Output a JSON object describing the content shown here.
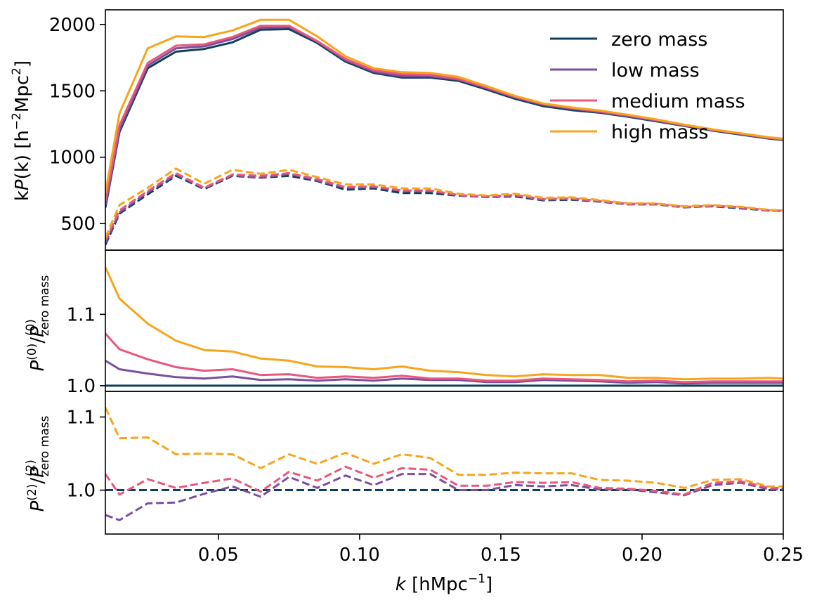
{
  "chart_data": {
    "type": "line",
    "x": [
      0.01,
      0.015,
      0.025,
      0.035,
      0.045,
      0.055,
      0.065,
      0.075,
      0.085,
      0.095,
      0.105,
      0.115,
      0.125,
      0.135,
      0.145,
      0.155,
      0.165,
      0.175,
      0.185,
      0.195,
      0.205,
      0.215,
      0.225,
      0.235,
      0.245,
      0.25
    ],
    "xlabel_symbol": "k",
    "xlabel_units": "[hMpc",
    "xlabel_exp": "−1",
    "xlim": [
      0.01,
      0.25
    ],
    "xticks": [
      0.05,
      0.1,
      0.15,
      0.2,
      0.25
    ],
    "xtick_labels": [
      "0.05",
      "0.10",
      "0.15",
      "0.20",
      "0.25"
    ],
    "colors": {
      "zero_mass": "#0e3f5c",
      "low_mass": "#7b4f9e",
      "medium_mass": "#e8577c",
      "high_mass": "#f7a51b"
    },
    "legend": {
      "placement": "top-right",
      "entries": [
        {
          "key": "zero_mass",
          "label": "zero mass"
        },
        {
          "key": "low_mass",
          "label": "low mass"
        },
        {
          "key": "medium_mass",
          "label": "medium mass"
        },
        {
          "key": "high_mass",
          "label": "high mass"
        }
      ]
    },
    "panels": [
      {
        "id": "top",
        "ylabel_prefix": "k",
        "ylabel_func": "P",
        "ylabel_arg": "(k) [h",
        "ylabel_exp1": "−2",
        "ylabel_mid": "Mpc",
        "ylabel_exp2": "2",
        "ylabel_end": "]",
        "ylim": [
          300,
          2110
        ],
        "yticks": [
          500,
          1000,
          1500,
          2000
        ],
        "ytick_labels": [
          "500",
          "1000",
          "1500",
          "2000"
        ],
        "series": [
          {
            "key": "zero_mass",
            "style": "solid",
            "values": [
              620,
              1190,
              1670,
              1795,
              1815,
              1865,
              1960,
              1965,
              1860,
              1720,
              1635,
              1600,
              1600,
              1575,
              1510,
              1440,
              1385,
              1355,
              1335,
              1305,
              1270,
              1235,
              1200,
              1170,
              1140,
              1130
            ]
          },
          {
            "key": "low_mass",
            "style": "solid",
            "values": [
              640,
              1210,
              1690,
              1820,
              1835,
              1890,
              1975,
              1980,
              1870,
              1730,
              1645,
              1610,
              1610,
              1585,
              1520,
              1450,
              1395,
              1365,
              1340,
              1310,
              1275,
              1238,
              1204,
              1174,
              1143,
              1133
            ]
          },
          {
            "key": "medium_mass",
            "style": "solid",
            "values": [
              670,
              1240,
              1710,
              1840,
              1850,
              1905,
              1990,
              1990,
              1875,
              1740,
              1655,
              1625,
              1620,
              1590,
              1525,
              1455,
              1400,
              1370,
              1345,
              1315,
              1280,
              1242,
              1207,
              1177,
              1146,
              1136
            ]
          },
          {
            "key": "high_mass",
            "style": "solid",
            "values": [
              730,
              1330,
              1820,
              1910,
              1905,
              1955,
              2035,
              2035,
              1910,
              1760,
              1670,
              1640,
              1635,
              1605,
              1535,
              1462,
              1405,
              1375,
              1352,
              1320,
              1285,
              1245,
              1210,
              1180,
              1150,
              1140
            ]
          },
          {
            "key": "zero_mass",
            "style": "dashed",
            "values": [
              340,
              575,
              720,
              860,
              760,
              860,
              845,
              860,
              820,
              755,
              765,
              730,
              730,
              710,
              700,
              705,
              675,
              680,
              665,
              645,
              645,
              625,
              630,
              615,
              598,
              595
            ]
          },
          {
            "key": "low_mass",
            "style": "dashed",
            "values": [
              355,
              585,
              735,
              870,
              765,
              865,
              845,
              875,
              825,
              770,
              775,
              745,
              745,
              712,
              700,
              712,
              680,
              685,
              668,
              646,
              645,
              622,
              633,
              620,
              598,
              595
            ]
          },
          {
            "key": "medium_mass",
            "style": "dashed",
            "values": [
              375,
              600,
              745,
              880,
              770,
              870,
              860,
              880,
              835,
              775,
              780,
              750,
              750,
              715,
              705,
              715,
              685,
              690,
              670,
              650,
              648,
              625,
              635,
              622,
              600,
              597
            ]
          },
          {
            "key": "high_mass",
            "style": "dashed",
            "values": [
              395,
              640,
              770,
              915,
              800,
              905,
              875,
              905,
              850,
              795,
              795,
              765,
              765,
              725,
              712,
              725,
              695,
              698,
              678,
              653,
              652,
              630,
              640,
              627,
              603,
              600
            ]
          }
        ]
      },
      {
        "id": "middle",
        "ylabel_func": "P",
        "ylabel_sup": "(0)",
        "ylabel_slash": "/",
        "ylabel_sub": "zero mass",
        "ylim": [
          0.992,
          1.19
        ],
        "yticks": [
          1.0,
          1.1
        ],
        "ytick_labels": [
          "1.0",
          "1.1"
        ],
        "series": [
          {
            "key": "zero_mass",
            "style": "solid",
            "values": [
              1.0,
              1.0,
              1.0,
              1.0,
              1.0,
              1.0,
              1.0,
              1.0,
              1.0,
              1.0,
              1.0,
              1.0,
              1.0,
              1.0,
              1.0,
              1.0,
              1.0,
              1.0,
              1.0,
              1.0,
              1.0,
              1.0,
              1.0,
              1.0,
              1.0,
              1.0
            ]
          },
          {
            "key": "low_mass",
            "style": "solid",
            "values": [
              1.035,
              1.023,
              1.017,
              1.012,
              1.01,
              1.013,
              1.008,
              1.009,
              1.007,
              1.009,
              1.007,
              1.01,
              1.008,
              1.008,
              1.005,
              1.005,
              1.008,
              1.007,
              1.006,
              1.004,
              1.005,
              1.003,
              1.004,
              1.004,
              1.004,
              1.004
            ]
          },
          {
            "key": "medium_mass",
            "style": "solid",
            "values": [
              1.073,
              1.051,
              1.037,
              1.026,
              1.021,
              1.023,
              1.015,
              1.016,
              1.011,
              1.013,
              1.011,
              1.014,
              1.01,
              1.01,
              1.007,
              1.007,
              1.01,
              1.009,
              1.008,
              1.006,
              1.007,
              1.005,
              1.006,
              1.006,
              1.006,
              1.006
            ]
          },
          {
            "key": "high_mass",
            "style": "solid",
            "values": [
              1.166,
              1.122,
              1.087,
              1.063,
              1.05,
              1.048,
              1.038,
              1.035,
              1.027,
              1.026,
              1.023,
              1.027,
              1.021,
              1.019,
              1.015,
              1.013,
              1.016,
              1.015,
              1.015,
              1.011,
              1.011,
              1.009,
              1.01,
              1.01,
              1.011,
              1.01
            ]
          }
        ]
      },
      {
        "id": "bottom",
        "ylabel_func": "P",
        "ylabel_sup": "(2)",
        "ylabel_slash": "/",
        "ylabel_sub": "zero mass",
        "ylim": [
          0.94,
          1.135
        ],
        "yticks": [
          1.0,
          1.1
        ],
        "ytick_labels": [
          "1.0",
          "1.1"
        ],
        "series": [
          {
            "key": "zero_mass",
            "style": "dashed",
            "values": [
              1.0,
              1.0,
              1.0,
              1.0,
              1.0,
              1.0,
              1.0,
              1.0,
              1.0,
              1.0,
              1.0,
              1.0,
              1.0,
              1.0,
              1.0,
              1.0,
              1.0,
              1.0,
              1.0,
              1.0,
              1.0,
              1.0,
              1.0,
              1.0,
              1.0,
              1.0
            ]
          },
          {
            "key": "low_mass",
            "style": "dashed",
            "values": [
              0.966,
              0.959,
              0.982,
              0.983,
              0.995,
              1.005,
              0.991,
              1.018,
              1.003,
              1.02,
              1.007,
              1.022,
              1.022,
              1.0,
              1.0,
              1.007,
              1.005,
              1.007,
              1.001,
              1.001,
              0.997,
              0.993,
              1.007,
              1.01,
              1.001,
              1.001
            ]
          },
          {
            "key": "medium_mass",
            "style": "dashed",
            "values": [
              1.022,
              0.994,
              1.015,
              1.003,
              1.01,
              1.016,
              0.998,
              1.025,
              1.013,
              1.032,
              1.017,
              1.03,
              1.028,
              1.006,
              1.006,
              1.011,
              1.01,
              1.011,
              1.003,
              1.002,
              0.999,
              0.994,
              1.01,
              1.012,
              1.003,
              1.003
            ]
          },
          {
            "key": "high_mass",
            "style": "dashed",
            "values": [
              1.113,
              1.071,
              1.072,
              1.049,
              1.05,
              1.049,
              1.03,
              1.049,
              1.036,
              1.051,
              1.036,
              1.049,
              1.044,
              1.021,
              1.021,
              1.024,
              1.023,
              1.023,
              1.014,
              1.013,
              1.01,
              1.003,
              1.014,
              1.015,
              1.005,
              1.005
            ]
          }
        ]
      }
    ]
  }
}
